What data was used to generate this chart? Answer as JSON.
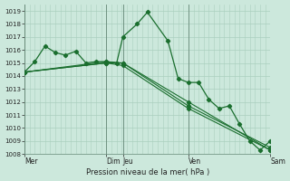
{
  "title": "Pression niveau de la mer( hPa )",
  "ylim": [
    1008,
    1019.5
  ],
  "yticks": [
    1008,
    1009,
    1010,
    1011,
    1012,
    1013,
    1014,
    1015,
    1016,
    1017,
    1018,
    1019
  ],
  "day_labels": [
    "Mer",
    "Dim",
    "Jeu",
    "Ven",
    "Sam"
  ],
  "day_positions": [
    0.0,
    4.0,
    4.8,
    8.0,
    12.0
  ],
  "bg_color": "#cce8dc",
  "grid_color": "#aacfbe",
  "line_color": "#1a6e2e",
  "line1_x": [
    0,
    0.5,
    1.0,
    1.5,
    2.0,
    2.5,
    3.0,
    3.5,
    4.0,
    4.5,
    4.8,
    5.5,
    6.0,
    7.0,
    7.5,
    8.0,
    8.5,
    9.0,
    9.5,
    10.0,
    10.5,
    11.0,
    11.5,
    12.0
  ],
  "line1_y": [
    1014.3,
    1015.1,
    1016.3,
    1015.8,
    1015.6,
    1015.9,
    1015.0,
    1015.1,
    1015.1,
    1015.0,
    1017.0,
    1018.0,
    1018.9,
    1016.7,
    1013.8,
    1013.5,
    1013.5,
    1012.2,
    1011.5,
    1011.7,
    1010.3,
    1009.0,
    1008.3,
    1009.0
  ],
  "line2_x": [
    0,
    4.0,
    4.8,
    8.0,
    12.0
  ],
  "line2_y": [
    1014.3,
    1015.0,
    1015.0,
    1012.0,
    1008.3
  ],
  "line3_x": [
    0,
    4.0,
    4.8,
    8.0,
    12.0
  ],
  "line3_y": [
    1014.3,
    1015.0,
    1014.8,
    1011.5,
    1008.3
  ],
  "line4_x": [
    0,
    4.0,
    4.8,
    8.0,
    12.0
  ],
  "line4_y": [
    1014.3,
    1015.1,
    1015.0,
    1011.7,
    1008.5
  ],
  "xlim": [
    0,
    12.0
  ]
}
